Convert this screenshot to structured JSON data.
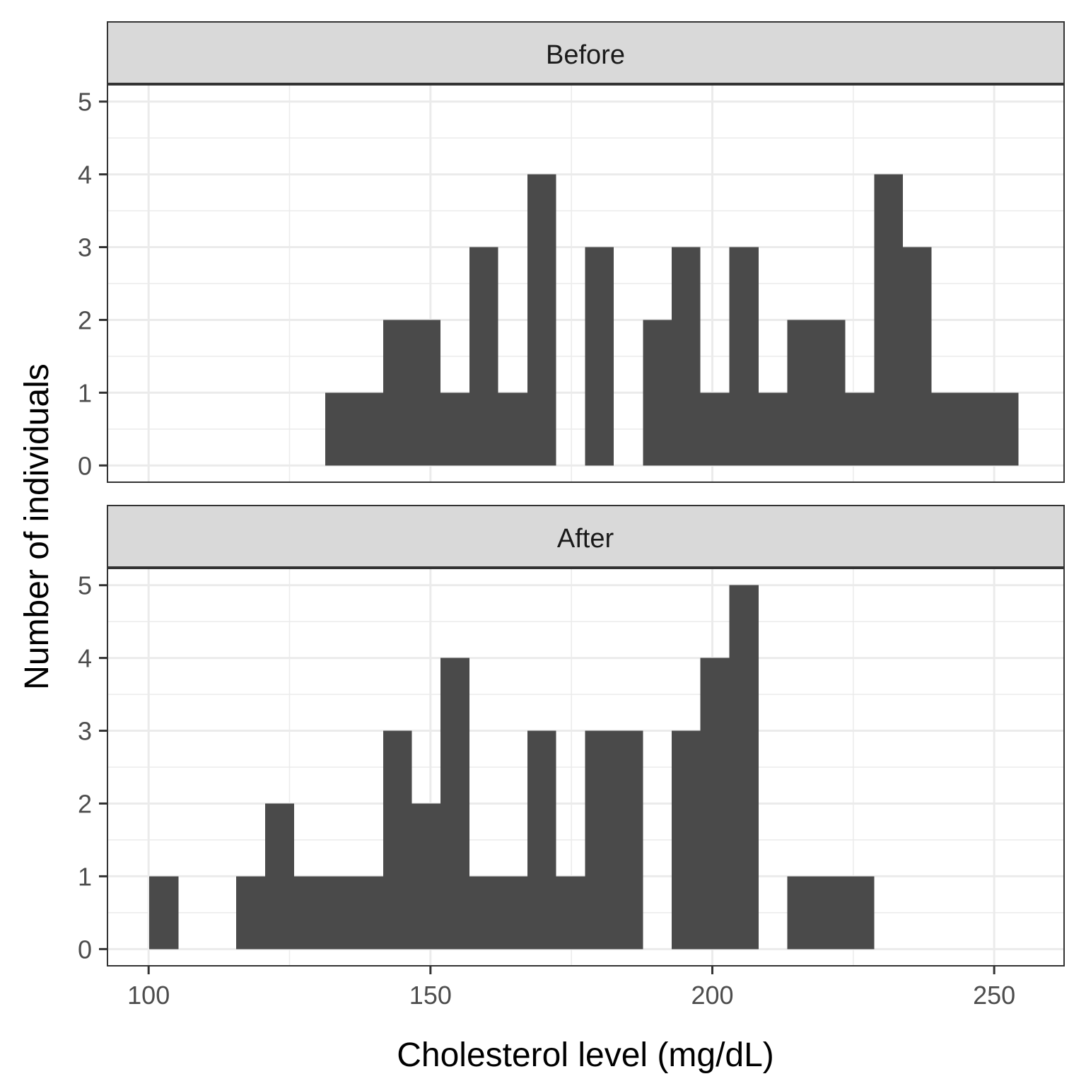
{
  "chart_data": {
    "type": "bar",
    "xlabel": "Cholesterol level (mg/dL)",
    "ylabel": "Number of individuals",
    "xlim": [
      92.7,
      262.4
    ],
    "ylim": [
      -0.23,
      5.23
    ],
    "x_ticks": [
      100,
      150,
      200,
      250
    ],
    "x_tick_labels": [
      "100",
      "150",
      "200",
      "250"
    ],
    "y_ticks": [
      0,
      1,
      2,
      3,
      4,
      5
    ],
    "y_tick_labels": [
      "0",
      "1",
      "2",
      "3",
      "4",
      "5"
    ],
    "grid": true,
    "bar_color": "#4a4a4a",
    "panels": [
      {
        "label": "Before",
        "bins": [
          {
            "x0": 131.3,
            "x1": 141.6,
            "count": 1
          },
          {
            "x0": 141.6,
            "x1": 151.8,
            "count": 2
          },
          {
            "x0": 151.8,
            "x1": 156.9,
            "count": 1
          },
          {
            "x0": 156.9,
            "x1": 162.0,
            "count": 3
          },
          {
            "x0": 162.0,
            "x1": 167.2,
            "count": 1
          },
          {
            "x0": 167.2,
            "x1": 172.3,
            "count": 4
          },
          {
            "x0": 177.4,
            "x1": 182.5,
            "count": 3
          },
          {
            "x0": 187.7,
            "x1": 192.8,
            "count": 2
          },
          {
            "x0": 192.8,
            "x1": 197.9,
            "count": 3
          },
          {
            "x0": 197.9,
            "x1": 203.0,
            "count": 1
          },
          {
            "x0": 203.0,
            "x1": 208.2,
            "count": 3
          },
          {
            "x0": 208.2,
            "x1": 213.3,
            "count": 1
          },
          {
            "x0": 213.3,
            "x1": 223.6,
            "count": 2
          },
          {
            "x0": 223.6,
            "x1": 228.7,
            "count": 1
          },
          {
            "x0": 228.7,
            "x1": 233.8,
            "count": 4
          },
          {
            "x0": 233.8,
            "x1": 238.9,
            "count": 3
          },
          {
            "x0": 238.9,
            "x1": 254.3,
            "count": 1
          }
        ]
      },
      {
        "label": "After",
        "bins": [
          {
            "x0": 100.1,
            "x1": 105.3,
            "count": 1
          },
          {
            "x0": 115.5,
            "x1": 120.7,
            "count": 1
          },
          {
            "x0": 120.7,
            "x1": 125.8,
            "count": 2
          },
          {
            "x0": 125.8,
            "x1": 141.6,
            "count": 1
          },
          {
            "x0": 141.6,
            "x1": 146.7,
            "count": 3
          },
          {
            "x0": 146.7,
            "x1": 151.8,
            "count": 2
          },
          {
            "x0": 151.8,
            "x1": 156.9,
            "count": 4
          },
          {
            "x0": 156.9,
            "x1": 167.2,
            "count": 1
          },
          {
            "x0": 167.2,
            "x1": 172.3,
            "count": 3
          },
          {
            "x0": 172.3,
            "x1": 177.4,
            "count": 1
          },
          {
            "x0": 177.4,
            "x1": 187.7,
            "count": 3
          },
          {
            "x0": 192.8,
            "x1": 197.9,
            "count": 3
          },
          {
            "x0": 197.9,
            "x1": 203.0,
            "count": 4
          },
          {
            "x0": 203.0,
            "x1": 208.2,
            "count": 5
          },
          {
            "x0": 213.3,
            "x1": 228.7,
            "count": 1
          }
        ]
      }
    ]
  }
}
